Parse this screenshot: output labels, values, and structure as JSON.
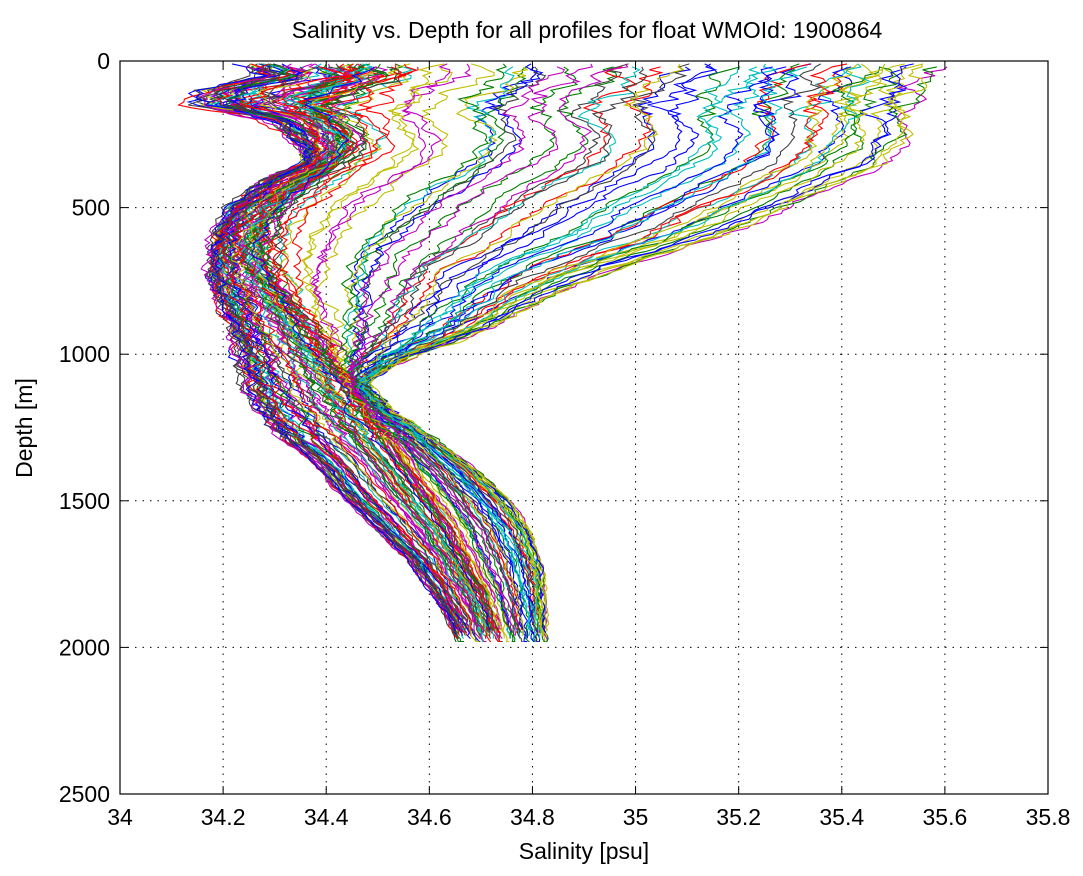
{
  "chart_data": {
    "type": "line",
    "title": "Salinity vs. Depth for all profiles for float WMOId: 1900864",
    "xlabel": "Salinity [psu]",
    "ylabel": "Depth [m]",
    "xlim": [
      34,
      35.8
    ],
    "ylim": [
      0,
      2500
    ],
    "y_reversed": true,
    "grid": true,
    "grid_style": "dotted",
    "x_ticks": [
      34,
      34.2,
      34.4,
      34.6,
      34.8,
      35,
      35.2,
      35.4,
      35.6,
      35.8
    ],
    "x_tick_labels": [
      "34",
      "34.2",
      "34.4",
      "34.6",
      "34.8",
      "35",
      "35.2",
      "35.4",
      "35.6",
      "35.8"
    ],
    "y_ticks": [
      0,
      500,
      1000,
      1500,
      2000,
      2500
    ],
    "y_tick_labels": [
      "0",
      "500",
      "1000",
      "1500",
      "2000",
      "2500"
    ],
    "color_cycle": [
      "#0000ff",
      "#008000",
      "#ff0000",
      "#00bfbf",
      "#bf00bf",
      "#bfbf00",
      "#404040"
    ],
    "profile_count": 140,
    "envelope": {
      "note": "approximate envelope of the plotted profiles, salinity (psu) at each depth (m)",
      "depth": [
        0,
        50,
        100,
        150,
        200,
        250,
        300,
        350,
        400,
        450,
        500,
        550,
        600,
        650,
        700,
        750,
        800,
        850,
        900,
        950,
        1000,
        1050,
        1100,
        1150,
        1200,
        1250,
        1300,
        1350,
        1400,
        1450,
        1500,
        1550,
        1600,
        1650,
        1700,
        1750,
        1800,
        1850,
        1900,
        1950,
        1980
      ],
      "salinity_min": [
        34.2,
        34.26,
        34.15,
        34.14,
        34.28,
        34.32,
        34.35,
        34.35,
        34.28,
        34.24,
        34.21,
        34.19,
        34.18,
        34.17,
        34.17,
        34.17,
        34.18,
        34.19,
        34.2,
        34.21,
        34.22,
        34.22,
        34.23,
        34.24,
        34.26,
        34.28,
        34.31,
        34.35,
        34.38,
        34.4,
        34.43,
        34.46,
        34.49,
        34.52,
        34.55,
        34.57,
        34.59,
        34.61,
        34.63,
        34.64,
        34.65
      ],
      "salinity_median": [
        34.5,
        34.5,
        34.45,
        34.4,
        34.42,
        34.45,
        34.45,
        34.42,
        34.38,
        34.34,
        34.31,
        34.29,
        34.28,
        34.28,
        34.29,
        34.3,
        34.32,
        34.34,
        34.36,
        34.38,
        34.4,
        34.42,
        34.44,
        34.46,
        34.48,
        34.5,
        34.52,
        34.54,
        34.56,
        34.58,
        34.6,
        34.62,
        34.64,
        34.65,
        34.67,
        34.68,
        34.7,
        34.71,
        34.72,
        34.73,
        34.74
      ],
      "salinity_max": [
        35.63,
        35.6,
        35.58,
        35.57,
        35.57,
        35.57,
        35.55,
        35.52,
        35.46,
        35.4,
        35.33,
        35.27,
        35.2,
        35.1,
        35.0,
        34.92,
        34.86,
        34.8,
        34.74,
        34.67,
        34.58,
        34.52,
        34.48,
        34.5,
        34.53,
        34.58,
        34.62,
        34.66,
        34.7,
        34.73,
        34.76,
        34.78,
        34.8,
        34.81,
        34.82,
        34.83,
        34.83,
        34.83,
        34.83,
        34.83,
        34.83
      ]
    }
  }
}
